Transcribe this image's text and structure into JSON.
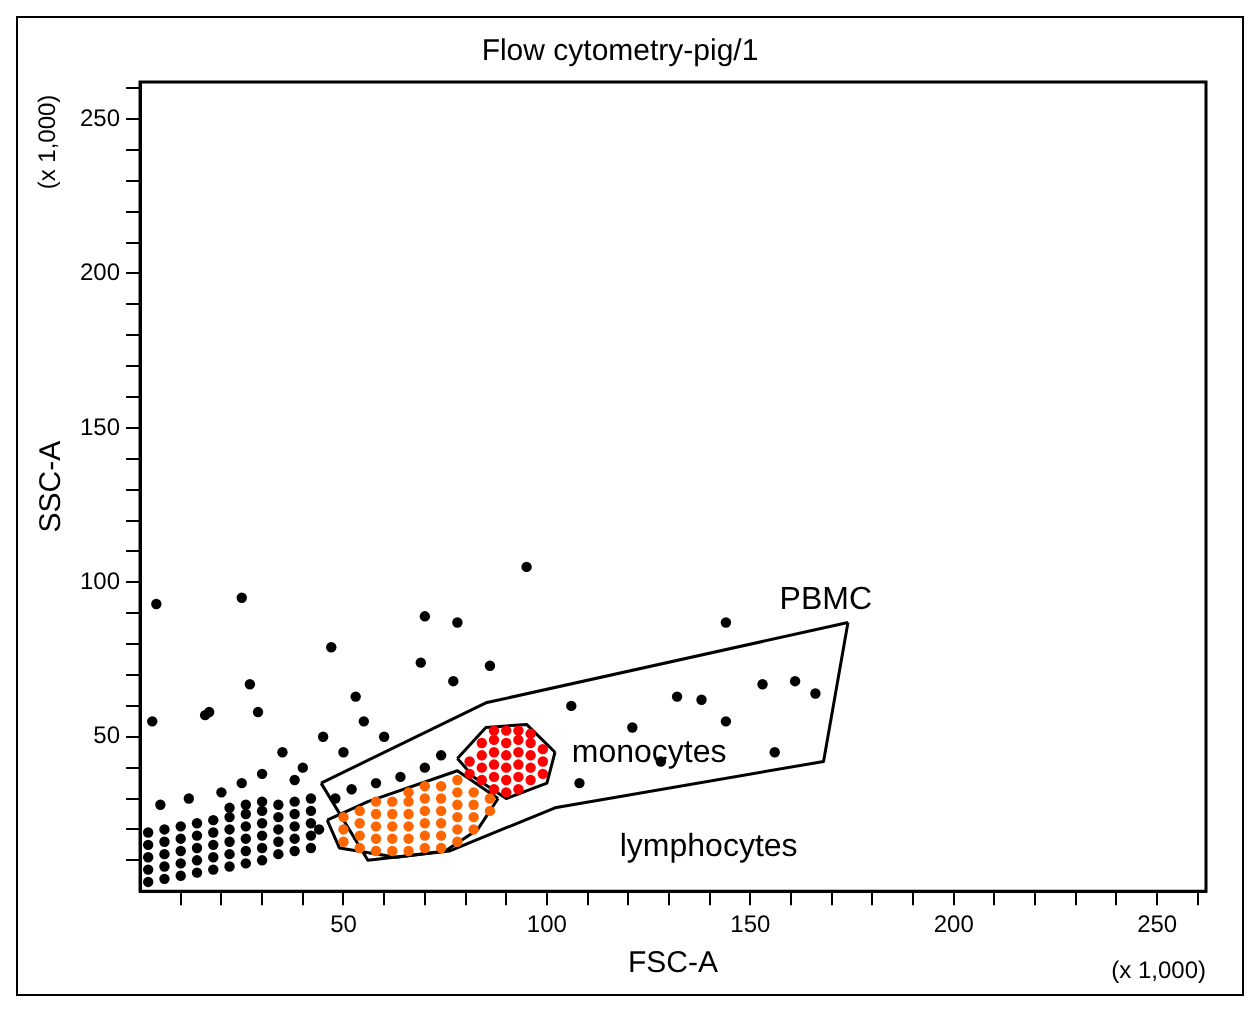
{
  "chart_data": {
    "type": "scatter",
    "title": "Flow cytometry-pig/1",
    "xlabel": "FSC-A",
    "ylabel": "SSC-A",
    "annotations": [
      "(x 1,000)",
      "(x 1,000)",
      "PBMC",
      "monocytes",
      "lymphocytes"
    ],
    "xlim": [
      0,
      262
    ],
    "ylim": [
      0,
      262
    ],
    "xticks": [
      {
        "value": 10,
        "label": null
      },
      {
        "value": 20,
        "label": null
      },
      {
        "value": 30,
        "label": null
      },
      {
        "value": 40,
        "label": null
      },
      50,
      {
        "value": 60,
        "label": null
      },
      {
        "value": 70,
        "label": null
      },
      {
        "value": 80,
        "label": null
      },
      {
        "value": 90,
        "label": null
      },
      100,
      {
        "value": 110,
        "label": null
      },
      {
        "value": 120,
        "label": null
      },
      {
        "value": 130,
        "label": null
      },
      {
        "value": 140,
        "label": null
      },
      150,
      {
        "value": 160,
        "label": null
      },
      {
        "value": 170,
        "label": null
      },
      {
        "value": 180,
        "label": null
      },
      {
        "value": 190,
        "label": null
      },
      200,
      {
        "value": 210,
        "label": null
      },
      {
        "value": 220,
        "label": null
      },
      {
        "value": 230,
        "label": null
      },
      {
        "value": 240,
        "label": null
      },
      250,
      {
        "value": 260,
        "label": null
      }
    ],
    "yticks": [
      {
        "value": 10,
        "label": null
      },
      {
        "value": 20,
        "label": null
      },
      {
        "value": 30,
        "label": null
      },
      {
        "value": 40,
        "label": null
      },
      50,
      {
        "value": 60,
        "label": null
      },
      {
        "value": 70,
        "label": null
      },
      {
        "value": 80,
        "label": null
      },
      {
        "value": 90,
        "label": null
      },
      100,
      {
        "value": 110,
        "label": null
      },
      {
        "value": 120,
        "label": null
      },
      {
        "value": 130,
        "label": null
      },
      {
        "value": 140,
        "label": null
      },
      150,
      {
        "value": 160,
        "label": null
      },
      {
        "value": 170,
        "label": null
      },
      {
        "value": 180,
        "label": null
      },
      {
        "value": 190,
        "label": null
      },
      200,
      {
        "value": 210,
        "label": null
      },
      {
        "value": 220,
        "label": null
      },
      {
        "value": 230,
        "label": null
      },
      {
        "value": 240,
        "label": null
      },
      250,
      {
        "value": 260,
        "label": null
      }
    ],
    "grid": false,
    "legend": false,
    "marker": "circle",
    "series": [
      {
        "color": "#000000",
        "x": [
          2,
          2,
          2,
          2,
          2,
          6,
          6,
          6,
          6,
          6,
          10,
          10,
          10,
          10,
          10,
          14,
          14,
          14,
          14,
          14,
          18,
          18,
          18,
          18,
          18,
          22,
          22,
          22,
          22,
          22,
          22,
          26,
          26,
          26,
          26,
          26,
          26,
          30,
          30,
          30,
          30,
          30,
          30,
          34,
          34,
          34,
          34,
          34,
          38,
          38,
          38,
          38,
          38,
          42,
          42,
          42,
          42,
          42,
          44,
          48,
          52,
          58,
          64,
          70,
          74,
          40,
          35,
          50,
          45,
          60,
          55,
          30,
          38,
          20,
          12,
          5,
          25,
          4,
          25,
          27,
          17,
          3,
          29,
          95,
          70,
          78,
          47,
          69,
          86,
          53,
          16,
          77,
          144,
          153,
          161,
          132,
          138,
          144,
          106,
          121,
          108,
          128,
          156,
          166
        ],
        "values": [
          3,
          7,
          11,
          15,
          19,
          4,
          8,
          12,
          16,
          20,
          5,
          9,
          13,
          17,
          21,
          6,
          10,
          14,
          18,
          22,
          7,
          11,
          15,
          19,
          23,
          8,
          12,
          16,
          20,
          24,
          27,
          9,
          13,
          17,
          21,
          25,
          28,
          10,
          14,
          18,
          22,
          26,
          29,
          12,
          16,
          20,
          24,
          28,
          13,
          17,
          21,
          25,
          29,
          14,
          18,
          22,
          26,
          30,
          20,
          30,
          33,
          35,
          37,
          40,
          44,
          40,
          45,
          45,
          50,
          50,
          55,
          38,
          36,
          32,
          30,
          28,
          35,
          93,
          95,
          67,
          58,
          55,
          58,
          105,
          89,
          87,
          79,
          74,
          73,
          63,
          57,
          68,
          87,
          67,
          68,
          63,
          62,
          55,
          60,
          53,
          35,
          42,
          45,
          64
        ]
      },
      {
        "color": "#ff6600",
        "x": [
          50,
          50,
          50,
          54,
          54,
          54,
          54,
          58,
          58,
          58,
          58,
          58,
          62,
          62,
          62,
          62,
          62,
          66,
          66,
          66,
          66,
          66,
          66,
          70,
          70,
          70,
          70,
          70,
          70,
          74,
          74,
          74,
          74,
          74,
          74,
          78,
          78,
          78,
          78,
          78,
          78,
          82,
          82,
          82,
          82,
          86,
          86
        ],
        "values": [
          16,
          20,
          24,
          14,
          18,
          22,
          26,
          13,
          17,
          21,
          25,
          29,
          13,
          17,
          21,
          25,
          29,
          13,
          17,
          21,
          25,
          29,
          32,
          14,
          18,
          22,
          26,
          30,
          34,
          14,
          18,
          22,
          26,
          30,
          34,
          16,
          20,
          24,
          28,
          32,
          36,
          20,
          24,
          28,
          32,
          26,
          30
        ]
      },
      {
        "color": "#ff0000",
        "x": [
          81,
          81,
          84,
          84,
          84,
          84,
          87,
          87,
          87,
          87,
          87,
          87,
          90,
          90,
          90,
          90,
          90,
          90,
          93,
          93,
          93,
          93,
          93,
          93,
          96,
          96,
          96,
          96,
          96,
          99,
          99,
          99
        ],
        "values": [
          38,
          42,
          36,
          40,
          44,
          48,
          33,
          37,
          41,
          45,
          49,
          52,
          32,
          36,
          40,
          44,
          48,
          52,
          33,
          37,
          41,
          45,
          49,
          52,
          36,
          40,
          44,
          48,
          51,
          38,
          42,
          46
        ]
      },
      {
        "type": "line",
        "color": "#000000",
        "marker": "none",
        "x": [
          44.5,
          85,
          174
        ],
        "values": [
          35,
          61,
          87
        ]
      },
      {
        "type": "line",
        "color": "#000000",
        "marker": "none",
        "x": [
          44.5,
          56,
          76,
          102,
          168,
          174
        ],
        "values": [
          35,
          10,
          13,
          27,
          42,
          87
        ]
      },
      {
        "type": "line",
        "color": "#000000",
        "marker": "none",
        "x": [
          78,
          85,
          95,
          102
        ],
        "values": [
          43,
          53,
          54,
          45
        ]
      },
      {
        "type": "line",
        "color": "#000000",
        "marker": "none",
        "x": [
          78,
          82,
          90,
          100,
          102
        ],
        "values": [
          43,
          37,
          30,
          35,
          45
        ]
      },
      {
        "type": "line",
        "color": "#000000",
        "marker": "none",
        "x": [
          46,
          56,
          78,
          88
        ],
        "values": [
          23,
          29,
          39,
          30
        ]
      },
      {
        "type": "line",
        "color": "#000000",
        "marker": "none",
        "x": [
          46,
          49,
          63,
          75,
          83,
          88
        ],
        "values": [
          23,
          14,
          11,
          13,
          20,
          30
        ]
      }
    ]
  }
}
